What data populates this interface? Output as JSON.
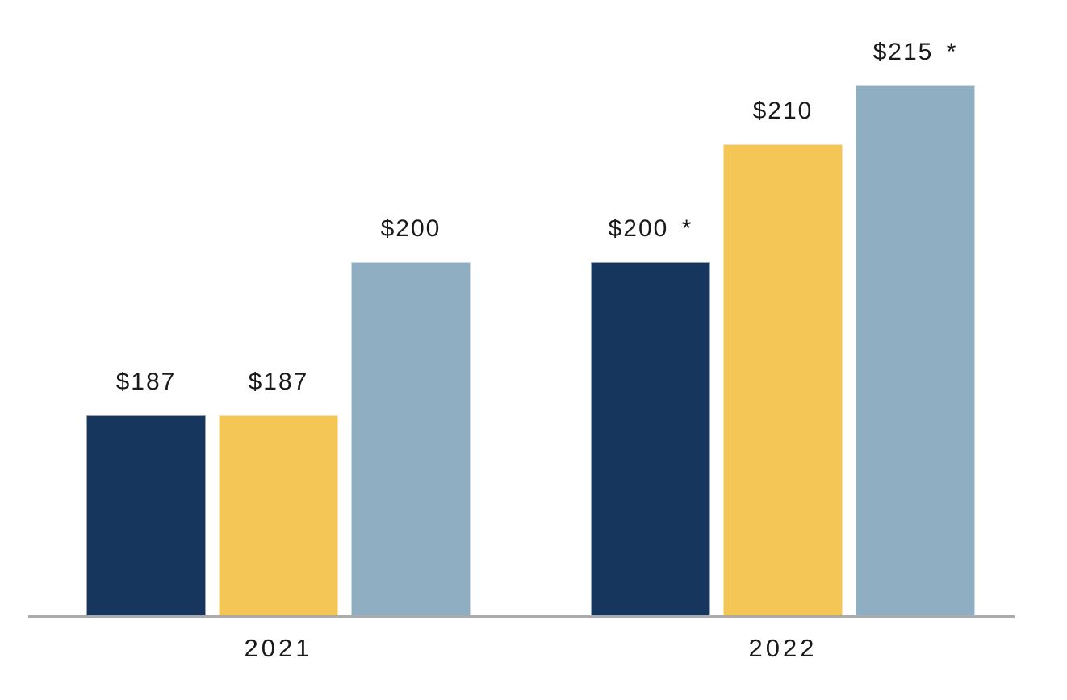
{
  "chart_data": {
    "type": "bar",
    "title": "",
    "categories": [
      "2021",
      "2022"
    ],
    "series": [
      {
        "name": "dark-navy-series",
        "color": "#17365D",
        "values": [
          187,
          200
        ],
        "labels": [
          "$187",
          "$200 *"
        ]
      },
      {
        "name": "gold-series",
        "color": "#F4C655",
        "values": [
          187,
          210
        ],
        "labels": [
          "$187",
          "$210"
        ]
      },
      {
        "name": "light-steel-blue-series",
        "color": "#8FAEC2",
        "values": [
          200,
          215
        ],
        "labels": [
          "$200",
          "$215 *"
        ]
      }
    ],
    "ylim": [
      170,
      220
    ],
    "grid": false,
    "legend": "none",
    "axis_line_color": "#ABABAB",
    "label_color": "#1A1A1A"
  }
}
